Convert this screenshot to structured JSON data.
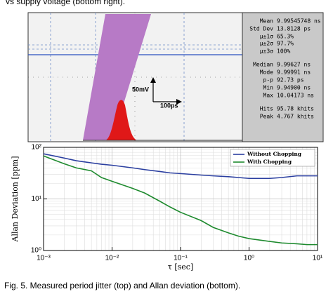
{
  "header_text": "vs supply voltage (bottom right).",
  "scope": {
    "annotations": [
      "50mV",
      "100ps"
    ],
    "stats": [
      [
        "Mean",
        "9.99545748 ns"
      ],
      [
        "Std Dev",
        "13.8128 ps"
      ],
      [
        "µ±1σ",
        "65.3%"
      ],
      [
        "µ±2σ",
        "97.7%"
      ],
      [
        "µ±3σ",
        "100%"
      ],
      [
        "Median",
        "9.99627 ns"
      ],
      [
        "Mode",
        "9.99991 ns"
      ],
      [
        "p-p",
        "92.73 ps"
      ],
      [
        "Min",
        "9.94900 ns"
      ],
      [
        "Max",
        "10.04173 ns"
      ],
      [
        "Hits",
        "95.78 khits"
      ],
      [
        "Peak",
        "4.767 khits"
      ]
    ]
  },
  "chart_data": {
    "type": "line",
    "xlabel": "τ [sec]",
    "ylabel": "Allan Deviation [ppm]",
    "x": [
      0.001,
      0.002,
      0.003,
      0.005,
      0.007,
      0.01,
      0.02,
      0.03,
      0.05,
      0.07,
      0.1,
      0.2,
      0.3,
      0.5,
      0.7,
      1,
      2,
      3,
      5,
      7,
      10
    ],
    "series": [
      {
        "name": "Without Chopping",
        "color": "#2b3fa0",
        "values": [
          75,
          62,
          55,
          50,
          47,
          45,
          40,
          37,
          34,
          32,
          31,
          29,
          28,
          27,
          26,
          25,
          25,
          26,
          28,
          28,
          28
        ]
      },
      {
        "name": "With Chopping",
        "color": "#1e8a2e",
        "values": [
          68,
          48,
          40,
          35,
          26,
          22,
          16,
          13,
          9,
          7,
          5.5,
          3.8,
          2.8,
          2.2,
          1.9,
          1.7,
          1.5,
          1.4,
          1.35,
          1.3,
          1.3
        ]
      }
    ],
    "xlim": [
      0.001,
      10
    ],
    "ylim": [
      1,
      100
    ],
    "xticks": [
      {
        "value": 0.001,
        "label": "10⁻³"
      },
      {
        "value": 0.01,
        "label": "10⁻²"
      },
      {
        "value": 0.1,
        "label": "10⁻¹"
      },
      {
        "value": 1,
        "label": "10⁰"
      },
      {
        "value": 10,
        "label": "10¹"
      }
    ],
    "yticks": [
      {
        "value": 1,
        "label": "10⁰"
      },
      {
        "value": 10,
        "label": "10¹"
      },
      {
        "value": 100,
        "label": "10²"
      }
    ],
    "log_x": true,
    "log_y": true,
    "grid": true,
    "legend": "upper right"
  },
  "caption": "Fig. 5. Measured period jitter (top) and Allan deviation (bottom)."
}
